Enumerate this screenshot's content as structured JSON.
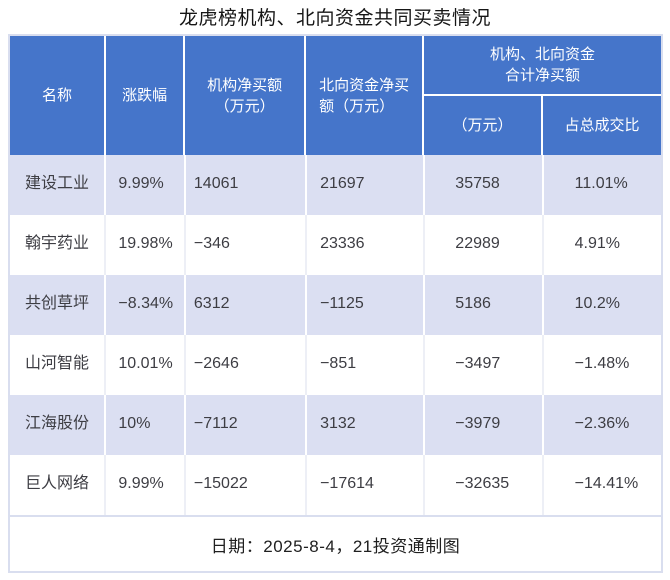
{
  "title": "龙虎榜机构、北向资金共同买卖情况",
  "header": {
    "name": "名称",
    "change": "涨跌幅",
    "inst_line1": "机构净买额",
    "inst_line2": "（万元）",
    "north_line1": "北向资金净买",
    "north_line2": "额（万元）",
    "combined_line1": "机构、北向资金",
    "combined_line2": "合计净买额",
    "combined_unit": "（万元）",
    "combined_ratio": "占总成交比"
  },
  "rows": [
    {
      "name": "建设工业",
      "change": "9.99%",
      "inst": "14061",
      "north": "21697",
      "combined": "35758",
      "ratio": "11.01%"
    },
    {
      "name": "翰宇药业",
      "change": "19.98%",
      "inst": "−346",
      "north": "23336",
      "combined": "22989",
      "ratio": "4.91%"
    },
    {
      "name": "共创草坪",
      "change": "−8.34%",
      "inst": "6312",
      "north": "−1125",
      "combined": "5186",
      "ratio": "10.2%"
    },
    {
      "name": "山河智能",
      "change": "10.01%",
      "inst": "−2646",
      "north": "−851",
      "combined": "−3497",
      "ratio": "−1.48%"
    },
    {
      "name": "江海股份",
      "change": "10%",
      "inst": "−7112",
      "north": "3132",
      "combined": "−3979",
      "ratio": "−2.36%"
    },
    {
      "name": "巨人网络",
      "change": "9.99%",
      "inst": "−15022",
      "north": "−17614",
      "combined": "−32635",
      "ratio": "−14.41%"
    }
  ],
  "footer_note": "日期：2025-8-4，21投资通制图",
  "colors": {
    "header_bg": "#4575CA",
    "row_alt_bg": "#DBDFF2",
    "row_bg": "#FFFFFF",
    "border_light": "#D9DEEF",
    "header_text": "#FFFFFF",
    "body_text": "#3D3D43"
  },
  "chart_data": {
    "type": "table",
    "title": "龙虎榜机构、北向资金共同买卖情况",
    "columns": [
      "名称",
      "涨跌幅(%)",
      "机构净买额（万元）",
      "北向资金净买额（万元）",
      "机构、北向资金合计净买额（万元）",
      "机构、北向资金合计净买额占总成交比(%)"
    ],
    "rows": [
      [
        "建设工业",
        9.99,
        14061,
        21697,
        35758,
        11.01
      ],
      [
        "翰宇药业",
        19.98,
        -346,
        23336,
        22989,
        4.91
      ],
      [
        "共创草坪",
        -8.34,
        6312,
        -1125,
        5186,
        10.2
      ],
      [
        "山河智能",
        10.01,
        -2646,
        -851,
        -3497,
        -1.48
      ],
      [
        "江海股份",
        10.0,
        -7112,
        3132,
        -3979,
        -2.36
      ],
      [
        "巨人网络",
        9.99,
        -15022,
        -17614,
        -32635,
        -14.41
      ]
    ],
    "note": "日期：2025-8-4，21投资通制图",
    "layout": {
      "striped": true,
      "stripe_color": "#DBDFF2",
      "header_color": "#4575CA"
    }
  }
}
